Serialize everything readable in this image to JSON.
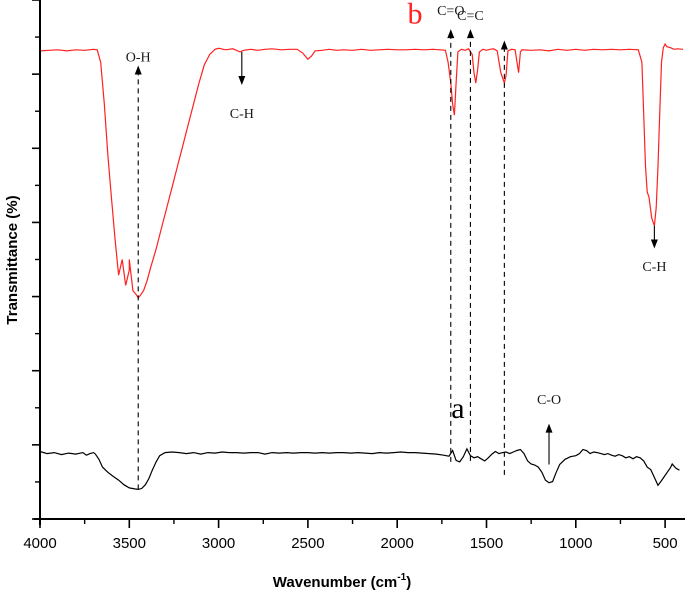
{
  "chart_data": {
    "type": "line",
    "title": "",
    "xlabel": "Wavenumber (cm",
    "xlabel_superscript": "-1",
    "xlabel_suffix": ")",
    "ylabel": "Transmittance (%)",
    "xlim": [
      4000,
      400
    ],
    "x_reversed": true,
    "ylim": [
      0,
      100
    ],
    "y_tick_labels_shown": false,
    "grid": false,
    "legend": "none",
    "x_ticks": [
      4000,
      3500,
      3000,
      2500,
      2000,
      1500,
      1000,
      500
    ],
    "x_tick_labels": [
      "4000",
      "3500",
      "3000",
      "2500",
      "2000",
      "1500",
      "1000",
      "500"
    ],
    "series": [
      {
        "name": "b",
        "label": "b",
        "color": "#ff2020",
        "label_position": {
          "x": 1900,
          "y": 95.5
        },
        "points": [
          [
            4000,
            90.2
          ],
          [
            3950,
            90.3
          ],
          [
            3900,
            90.4
          ],
          [
            3850,
            90.2
          ],
          [
            3800,
            90.4
          ],
          [
            3750,
            90.3
          ],
          [
            3700,
            90.5
          ],
          [
            3680,
            90.4
          ],
          [
            3660,
            88.0
          ],
          [
            3640,
            80.0
          ],
          [
            3620,
            70.0
          ],
          [
            3600,
            62.0
          ],
          [
            3580,
            54.0
          ],
          [
            3560,
            47.0
          ],
          [
            3540,
            50.0
          ],
          [
            3520,
            45.0
          ],
          [
            3500,
            48.0
          ],
          [
            3500,
            50.0
          ],
          [
            3480,
            44.0
          ],
          [
            3460,
            43.2
          ],
          [
            3450,
            42.6
          ],
          [
            3440,
            43.0
          ],
          [
            3420,
            44.0
          ],
          [
            3400,
            46.0
          ],
          [
            3380,
            48.5
          ],
          [
            3350,
            52.0
          ],
          [
            3320,
            56.0
          ],
          [
            3290,
            60.0
          ],
          [
            3260,
            64.0
          ],
          [
            3230,
            68.0
          ],
          [
            3200,
            72.0
          ],
          [
            3170,
            76.0
          ],
          [
            3140,
            80.0
          ],
          [
            3110,
            84.0
          ],
          [
            3080,
            87.5
          ],
          [
            3050,
            89.5
          ],
          [
            3020,
            90.5
          ],
          [
            3000,
            90.7
          ],
          [
            2960,
            90.4
          ],
          [
            2920,
            90.6
          ],
          [
            2880,
            90.0
          ],
          [
            2860,
            90.3
          ],
          [
            2820,
            90.5
          ],
          [
            2780,
            90.3
          ],
          [
            2740,
            90.5
          ],
          [
            2700,
            90.6
          ],
          [
            2650,
            90.4
          ],
          [
            2600,
            90.5
          ],
          [
            2560,
            90.5
          ],
          [
            2530,
            89.8
          ],
          [
            2500,
            88.6
          ],
          [
            2480,
            89.2
          ],
          [
            2460,
            90.2
          ],
          [
            2420,
            90.3
          ],
          [
            2380,
            90.5
          ],
          [
            2340,
            90.3
          ],
          [
            2300,
            90.4
          ],
          [
            2250,
            90.3
          ],
          [
            2200,
            90.5
          ],
          [
            2150,
            90.3
          ],
          [
            2100,
            90.4
          ],
          [
            2050,
            90.5
          ],
          [
            2000,
            90.4
          ],
          [
            1950,
            90.4
          ],
          [
            1900,
            90.5
          ],
          [
            1850,
            90.4
          ],
          [
            1800,
            90.5
          ],
          [
            1760,
            90.4
          ],
          [
            1730,
            90.3
          ],
          [
            1715,
            88.0
          ],
          [
            1700,
            84.0
          ],
          [
            1690,
            80.0
          ],
          [
            1680,
            77.8
          ],
          [
            1670,
            84.0
          ],
          [
            1660,
            90.0
          ],
          [
            1640,
            90.5
          ],
          [
            1620,
            90.3
          ],
          [
            1600,
            90.6
          ],
          [
            1580,
            89.5
          ],
          [
            1570,
            86.0
          ],
          [
            1560,
            84.0
          ],
          [
            1550,
            86.5
          ],
          [
            1540,
            90.0
          ],
          [
            1520,
            90.5
          ],
          [
            1500,
            90.3
          ],
          [
            1480,
            90.5
          ],
          [
            1460,
            90.6
          ],
          [
            1440,
            90.2
          ],
          [
            1420,
            86.0
          ],
          [
            1400,
            84.0
          ],
          [
            1390,
            85.5
          ],
          [
            1380,
            90.2
          ],
          [
            1360,
            90.5
          ],
          [
            1340,
            90.4
          ],
          [
            1320,
            86.0
          ],
          [
            1310,
            90.0
          ],
          [
            1300,
            90.4
          ],
          [
            1250,
            90.3
          ],
          [
            1200,
            90.4
          ],
          [
            1150,
            90.2
          ],
          [
            1100,
            90.5
          ],
          [
            1050,
            90.3
          ],
          [
            1000,
            90.5
          ],
          [
            950,
            90.3
          ],
          [
            900,
            90.5
          ],
          [
            850,
            90.4
          ],
          [
            800,
            90.5
          ],
          [
            750,
            90.4
          ],
          [
            700,
            90.5
          ],
          [
            650,
            90.4
          ],
          [
            630,
            88.0
          ],
          [
            620,
            78.0
          ],
          [
            610,
            68.0
          ],
          [
            600,
            63.0
          ],
          [
            590,
            62.0
          ],
          [
            575,
            58.0
          ],
          [
            560,
            56.5
          ],
          [
            550,
            60.0
          ],
          [
            540,
            68.0
          ],
          [
            530,
            78.0
          ],
          [
            520,
            88.0
          ],
          [
            510,
            90.8
          ],
          [
            500,
            91.5
          ],
          [
            490,
            91.0
          ],
          [
            470,
            90.8
          ],
          [
            450,
            90.5
          ],
          [
            430,
            90.6
          ],
          [
            400,
            90.5
          ]
        ]
      },
      {
        "name": "a",
        "label": "a",
        "color": "#000000",
        "label_position": {
          "x": 1660,
          "y": 19.5
        },
        "points": [
          [
            4000,
            13.0
          ],
          [
            3960,
            12.6
          ],
          [
            3920,
            12.8
          ],
          [
            3880,
            12.4
          ],
          [
            3840,
            12.7
          ],
          [
            3800,
            12.5
          ],
          [
            3760,
            12.8
          ],
          [
            3740,
            12.3
          ],
          [
            3720,
            12.6
          ],
          [
            3700,
            12.8
          ],
          [
            3690,
            12.5
          ],
          [
            3670,
            11.5
          ],
          [
            3650,
            10.0
          ],
          [
            3620,
            9.0
          ],
          [
            3590,
            8.2
          ],
          [
            3560,
            7.5
          ],
          [
            3530,
            6.6
          ],
          [
            3500,
            6.0
          ],
          [
            3470,
            5.8
          ],
          [
            3450,
            5.7
          ],
          [
            3430,
            5.9
          ],
          [
            3410,
            6.6
          ],
          [
            3390,
            7.8
          ],
          [
            3370,
            9.5
          ],
          [
            3350,
            11.0
          ],
          [
            3330,
            12.2
          ],
          [
            3300,
            12.8
          ],
          [
            3260,
            12.9
          ],
          [
            3220,
            12.8
          ],
          [
            3180,
            12.6
          ],
          [
            3140,
            12.8
          ],
          [
            3100,
            12.5
          ],
          [
            3060,
            12.8
          ],
          [
            3020,
            12.7
          ],
          [
            2980,
            12.9
          ],
          [
            2940,
            12.8
          ],
          [
            2900,
            12.8
          ],
          [
            2860,
            12.7
          ],
          [
            2820,
            12.8
          ],
          [
            2780,
            12.8
          ],
          [
            2740,
            12.5
          ],
          [
            2700,
            12.8
          ],
          [
            2660,
            12.7
          ],
          [
            2620,
            12.8
          ],
          [
            2580,
            12.7
          ],
          [
            2540,
            12.8
          ],
          [
            2500,
            12.8
          ],
          [
            2460,
            12.7
          ],
          [
            2420,
            12.8
          ],
          [
            2380,
            12.7
          ],
          [
            2340,
            12.8
          ],
          [
            2300,
            12.8
          ],
          [
            2260,
            12.7
          ],
          [
            2220,
            12.8
          ],
          [
            2180,
            12.7
          ],
          [
            2140,
            12.6
          ],
          [
            2100,
            12.8
          ],
          [
            2060,
            12.7
          ],
          [
            2020,
            12.8
          ],
          [
            1980,
            12.9
          ],
          [
            1940,
            12.8
          ],
          [
            1900,
            12.8
          ],
          [
            1860,
            12.7
          ],
          [
            1820,
            12.6
          ],
          [
            1780,
            12.5
          ],
          [
            1740,
            12.3
          ],
          [
            1710,
            12.1
          ],
          [
            1690,
            13.2
          ],
          [
            1670,
            11.3
          ],
          [
            1650,
            11.0
          ],
          [
            1630,
            12.0
          ],
          [
            1610,
            13.5
          ],
          [
            1590,
            12.2
          ],
          [
            1570,
            11.8
          ],
          [
            1550,
            12.0
          ],
          [
            1530,
            11.6
          ],
          [
            1510,
            11.2
          ],
          [
            1490,
            11.8
          ],
          [
            1470,
            12.5
          ],
          [
            1450,
            13.0
          ],
          [
            1430,
            12.6
          ],
          [
            1410,
            12.8
          ],
          [
            1390,
            12.9
          ],
          [
            1370,
            12.6
          ],
          [
            1350,
            12.9
          ],
          [
            1330,
            13.2
          ],
          [
            1310,
            13.4
          ],
          [
            1290,
            12.6
          ],
          [
            1270,
            11.2
          ],
          [
            1250,
            10.6
          ],
          [
            1230,
            10.4
          ],
          [
            1210,
            10.0
          ],
          [
            1190,
            9.0
          ],
          [
            1170,
            7.5
          ],
          [
            1150,
            7.0
          ],
          [
            1130,
            7.2
          ],
          [
            1110,
            9.0
          ],
          [
            1090,
            10.5
          ],
          [
            1060,
            11.5
          ],
          [
            1030,
            12.0
          ],
          [
            1000,
            12.2
          ],
          [
            980,
            12.6
          ],
          [
            960,
            13.4
          ],
          [
            940,
            13.2
          ],
          [
            920,
            12.6
          ],
          [
            900,
            12.9
          ],
          [
            880,
            12.8
          ],
          [
            860,
            12.6
          ],
          [
            840,
            12.4
          ],
          [
            820,
            12.6
          ],
          [
            800,
            12.3
          ],
          [
            780,
            12.1
          ],
          [
            760,
            12.4
          ],
          [
            740,
            12.2
          ],
          [
            720,
            11.8
          ],
          [
            700,
            12.0
          ],
          [
            680,
            11.6
          ],
          [
            660,
            12.0
          ],
          [
            640,
            11.8
          ],
          [
            620,
            11.2
          ],
          [
            600,
            10.0
          ],
          [
            580,
            9.5
          ],
          [
            560,
            8.0
          ],
          [
            540,
            6.5
          ],
          [
            520,
            7.4
          ],
          [
            500,
            8.4
          ],
          [
            480,
            9.4
          ],
          [
            470,
            9.9
          ],
          [
            460,
            10.6
          ],
          [
            440,
            9.8
          ],
          [
            420,
            9.4
          ]
        ]
      }
    ],
    "annotations": [
      {
        "text": "O-H",
        "series": "b",
        "x": 3450,
        "arrow": "up",
        "label_y": 87,
        "line_from_y": 5.7,
        "line_to_y": 87.0,
        "dashed": true
      },
      {
        "text": "C-H",
        "series": "b",
        "x": 2870,
        "arrow": "down",
        "label_y": 80,
        "line_from_y": 90.0,
        "line_to_y": 84.0,
        "dashed": false
      },
      {
        "text": "C=O",
        "series": "b",
        "x": 1700,
        "arrow": "up",
        "label_y": 96,
        "line_from_y": 11.0,
        "line_to_y": 94.0,
        "dashed": true
      },
      {
        "text": "C=C",
        "series": "b",
        "x": 1590,
        "arrow": "up",
        "label_y": 95,
        "line_from_y": 11.2,
        "line_to_y": 94.0,
        "dashed": true
      },
      {
        "text": "",
        "series": "b",
        "x": 1400,
        "arrow": "up",
        "label_y": 0,
        "line_from_y": 8.5,
        "line_to_y": 91.8,
        "dashed": true
      },
      {
        "text": "C-H",
        "series": "b",
        "x": 560,
        "arrow": "down",
        "label_y": 50.5,
        "line_from_y": 56.5,
        "line_to_y": 52.5,
        "dashed": false
      },
      {
        "text": "C-O",
        "series": "a",
        "x": 1150,
        "arrow": "up",
        "label_y": 21,
        "line_from_y": 10.5,
        "line_to_y": 18.0,
        "dashed": false
      }
    ]
  }
}
